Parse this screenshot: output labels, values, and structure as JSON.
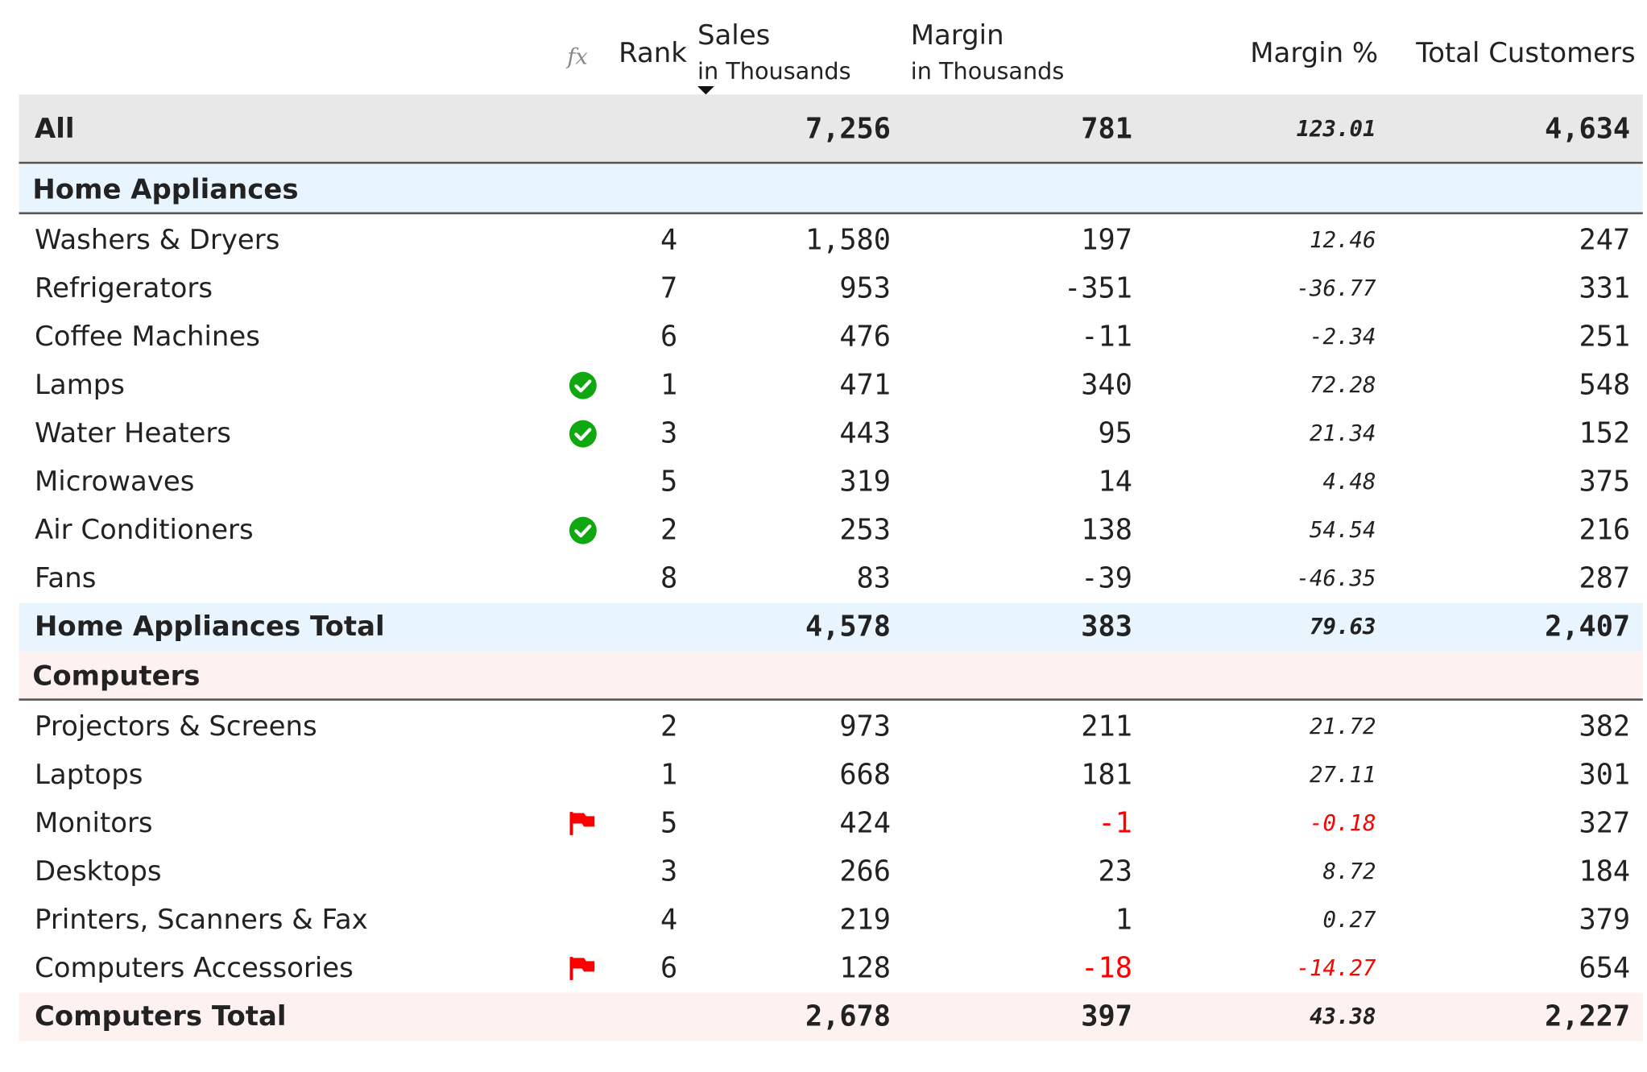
{
  "header": {
    "fx": "fx",
    "rank": "Rank",
    "sales": {
      "title": "Sales",
      "subtitle": "in Thousands"
    },
    "margin": {
      "title": "Margin",
      "subtitle": "in Thousands"
    },
    "margin_pct": "Margin %",
    "customers": "Total Customers"
  },
  "total": {
    "label": "All",
    "sales": "7,256",
    "margin": "781",
    "margin_pct": "123.01",
    "customers": "4,634"
  },
  "groups": [
    {
      "name": "Home Appliances",
      "color": "#e9f5fe",
      "rows": [
        {
          "label": "Washers & Dryers",
          "rank": "4",
          "sales": "1,580",
          "margin": "197",
          "margin_pct": "12.46",
          "customers": "247"
        },
        {
          "label": "Refrigerators",
          "rank": "7",
          "sales": "953",
          "margin": "-351",
          "margin_pct": "-36.77",
          "customers": "331"
        },
        {
          "label": "Coffee Machines",
          "rank": "6",
          "sales": "476",
          "margin": "-11",
          "margin_pct": "-2.34",
          "customers": "251"
        },
        {
          "label": "Lamps",
          "icon": "check",
          "rank": "1",
          "sales": "471",
          "margin": "340",
          "margin_pct": "72.28",
          "customers": "548"
        },
        {
          "label": "Water Heaters",
          "icon": "check",
          "rank": "3",
          "sales": "443",
          "margin": "95",
          "margin_pct": "21.34",
          "customers": "152"
        },
        {
          "label": "Microwaves",
          "rank": "5",
          "sales": "319",
          "margin": "14",
          "margin_pct": "4.48",
          "customers": "375"
        },
        {
          "label": "Air Conditioners",
          "icon": "check",
          "rank": "2",
          "sales": "253",
          "margin": "138",
          "margin_pct": "54.54",
          "customers": "216"
        },
        {
          "label": "Fans",
          "rank": "8",
          "sales": "83",
          "margin": "-39",
          "margin_pct": "-46.35",
          "customers": "287"
        }
      ],
      "total": {
        "label": "Home Appliances Total",
        "sales": "4,578",
        "margin": "383",
        "margin_pct": "79.63",
        "customers": "2,407"
      }
    },
    {
      "name": "Computers",
      "color": "#fdf2ef",
      "rows": [
        {
          "label": "Projectors & Screens",
          "rank": "2",
          "sales": "973",
          "margin": "211",
          "margin_pct": "21.72",
          "customers": "382"
        },
        {
          "label": "Laptops",
          "rank": "1",
          "sales": "668",
          "margin": "181",
          "margin_pct": "27.11",
          "customers": "301"
        },
        {
          "label": "Monitors",
          "icon": "flag",
          "rank": "5",
          "sales": "424",
          "margin": "-1",
          "margin_pct": "-0.18",
          "customers": "327"
        },
        {
          "label": "Desktops",
          "rank": "3",
          "sales": "266",
          "margin": "23",
          "margin_pct": "8.72",
          "customers": "184"
        },
        {
          "label": "Printers, Scanners & Fax",
          "rank": "4",
          "sales": "219",
          "margin": "1",
          "margin_pct": "0.27",
          "customers": "379"
        },
        {
          "label": "Computers Accessories",
          "icon": "flag",
          "rank": "6",
          "sales": "128",
          "margin": "-18",
          "margin_pct": "-14.27",
          "customers": "654"
        }
      ],
      "total": {
        "label": "Computers Total",
        "sales": "2,678",
        "margin": "397",
        "margin_pct": "43.38",
        "customers": "2,227"
      }
    }
  ]
}
